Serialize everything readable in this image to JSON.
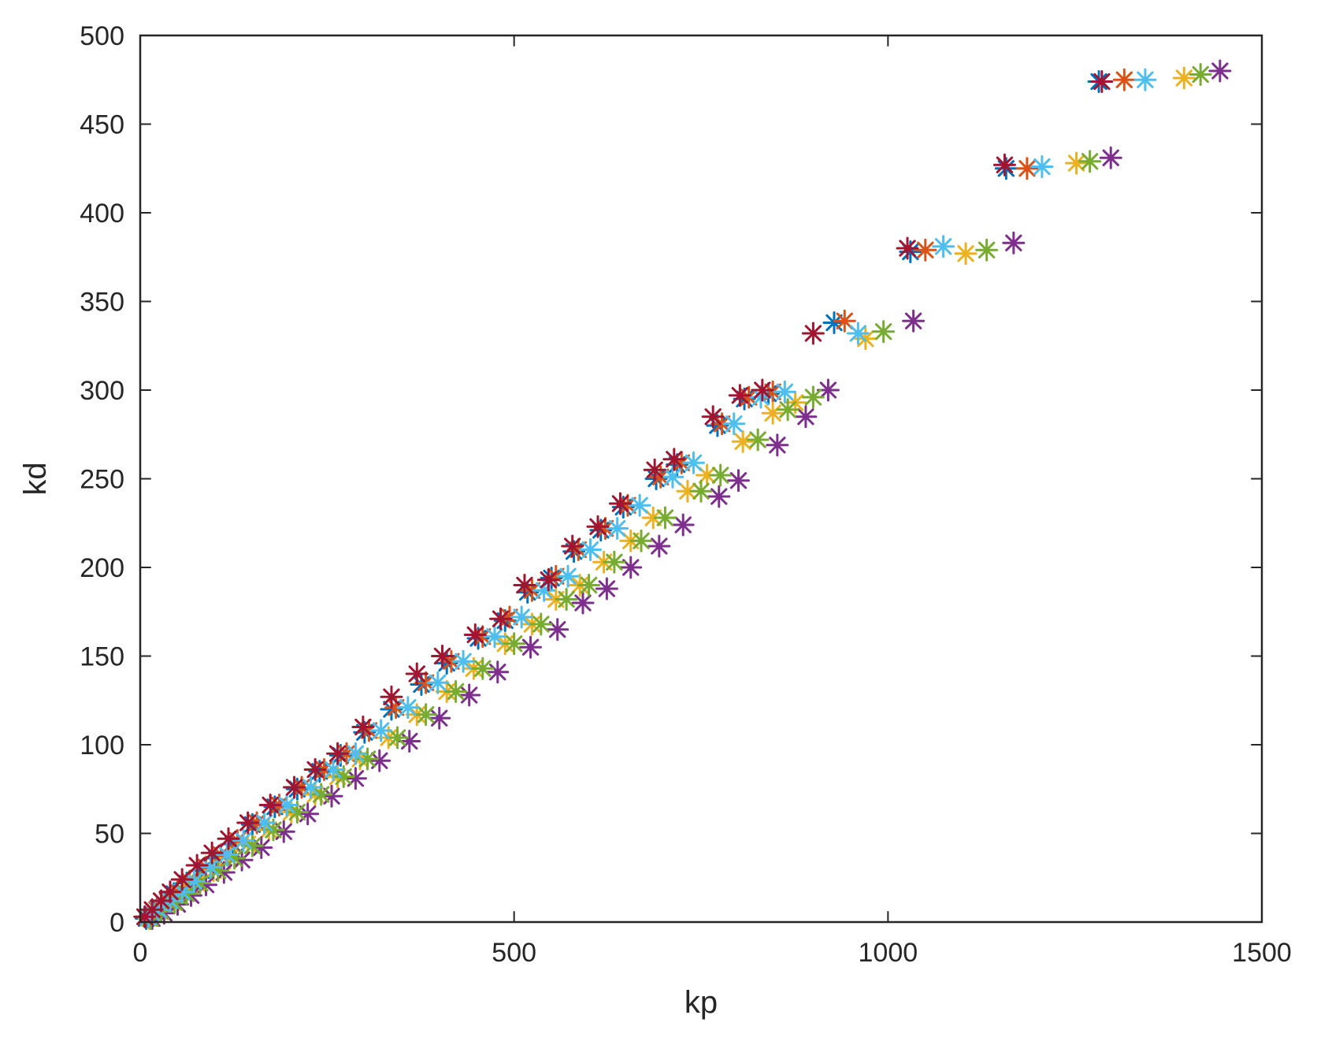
{
  "chart_data": {
    "type": "scatter",
    "title": "",
    "xlabel": "kp",
    "ylabel": "kd",
    "xlim": [
      0,
      1500
    ],
    "ylim": [
      0,
      500
    ],
    "xticks": [
      "0",
      "500",
      "1000",
      "1500"
    ],
    "yticks": [
      "0",
      "50",
      "100",
      "150",
      "200",
      "250",
      "300",
      "350",
      "400",
      "450",
      "500"
    ],
    "grid": false,
    "legend": "none",
    "marker": "*",
    "colors": [
      "#0072BD",
      "#D95319",
      "#EDB120",
      "#7E2F8E",
      "#77AC30",
      "#4DBEEE",
      "#A2142F"
    ],
    "series": [
      {
        "color": "#0072BD",
        "points": [
          [
            8,
            2
          ],
          [
            18,
            6
          ],
          [
            32,
            10
          ],
          [
            45,
            16
          ],
          [
            62,
            22
          ],
          [
            82,
            29
          ],
          [
            102,
            36
          ],
          [
            124,
            44
          ],
          [
            150,
            55
          ],
          [
            180,
            65
          ],
          [
            210,
            75
          ],
          [
            240,
            85
          ],
          [
            268,
            94
          ],
          [
            300,
            107
          ],
          [
            336,
            120
          ],
          [
            376,
            134
          ],
          [
            410,
            146
          ],
          [
            452,
            160
          ],
          [
            488,
            170
          ],
          [
            518,
            186
          ],
          [
            550,
            194
          ],
          [
            580,
            209
          ],
          [
            616,
            221
          ],
          [
            646,
            234
          ],
          [
            690,
            250
          ],
          [
            718,
            258
          ],
          [
            772,
            280
          ],
          [
            808,
            295
          ],
          [
            840,
            298
          ],
          [
            928,
            338
          ],
          [
            1030,
            378
          ],
          [
            1158,
            425
          ],
          [
            1282,
            474
          ]
        ]
      },
      {
        "color": "#D95319",
        "points": [
          [
            10,
            3
          ],
          [
            22,
            7
          ],
          [
            36,
            12
          ],
          [
            50,
            17
          ],
          [
            66,
            23
          ],
          [
            88,
            31
          ],
          [
            108,
            38
          ],
          [
            130,
            46
          ],
          [
            156,
            56
          ],
          [
            186,
            66
          ],
          [
            216,
            76
          ],
          [
            246,
            86
          ],
          [
            276,
            95
          ],
          [
            306,
            108
          ],
          [
            342,
            121
          ],
          [
            382,
            135
          ],
          [
            416,
            147
          ],
          [
            458,
            161
          ],
          [
            494,
            172
          ],
          [
            524,
            187
          ],
          [
            556,
            195
          ],
          [
            586,
            210
          ],
          [
            622,
            222
          ],
          [
            652,
            235
          ],
          [
            696,
            251
          ],
          [
            724,
            259
          ],
          [
            778,
            281
          ],
          [
            814,
            296
          ],
          [
            846,
            299
          ],
          [
            942,
            339
          ],
          [
            1050,
            379
          ],
          [
            1186,
            425
          ],
          [
            1316,
            475
          ]
        ]
      },
      {
        "color": "#EDB120",
        "points": [
          [
            12,
            2
          ],
          [
            26,
            6
          ],
          [
            42,
            11
          ],
          [
            58,
            16
          ],
          [
            76,
            22
          ],
          [
            98,
            29
          ],
          [
            120,
            36
          ],
          [
            144,
            44
          ],
          [
            172,
            52
          ],
          [
            202,
            62
          ],
          [
            234,
            72
          ],
          [
            264,
            82
          ],
          [
            294,
            92
          ],
          [
            332,
            104
          ],
          [
            370,
            117
          ],
          [
            410,
            130
          ],
          [
            446,
            143
          ],
          [
            488,
            157
          ],
          [
            524,
            168
          ],
          [
            556,
            182
          ],
          [
            588,
            190
          ],
          [
            620,
            203
          ],
          [
            656,
            215
          ],
          [
            686,
            228
          ],
          [
            732,
            243
          ],
          [
            758,
            252
          ],
          [
            806,
            271
          ],
          [
            846,
            287
          ],
          [
            876,
            293
          ],
          [
            970,
            329
          ],
          [
            1104,
            377
          ],
          [
            1252,
            428
          ],
          [
            1396,
            476
          ]
        ]
      },
      {
        "color": "#7E2F8E",
        "points": [
          [
            16,
            2
          ],
          [
            32,
            5
          ],
          [
            50,
            10
          ],
          [
            68,
            15
          ],
          [
            88,
            21
          ],
          [
            112,
            28
          ],
          [
            136,
            35
          ],
          [
            162,
            42
          ],
          [
            192,
            51
          ],
          [
            224,
            61
          ],
          [
            256,
            71
          ],
          [
            288,
            81
          ],
          [
            320,
            91
          ],
          [
            360,
            102
          ],
          [
            400,
            115
          ],
          [
            440,
            128
          ],
          [
            478,
            141
          ],
          [
            522,
            155
          ],
          [
            558,
            165
          ],
          [
            592,
            180
          ],
          [
            624,
            188
          ],
          [
            656,
            200
          ],
          [
            694,
            212
          ],
          [
            726,
            224
          ],
          [
            774,
            240
          ],
          [
            800,
            249
          ],
          [
            852,
            269
          ],
          [
            890,
            285
          ],
          [
            920,
            300
          ],
          [
            1034,
            339
          ],
          [
            1168,
            383
          ],
          [
            1298,
            431
          ],
          [
            1444,
            480
          ]
        ]
      },
      {
        "color": "#77AC30",
        "points": [
          [
            14,
            2
          ],
          [
            28,
            6
          ],
          [
            46,
            11
          ],
          [
            62,
            16
          ],
          [
            80,
            22
          ],
          [
            104,
            29
          ],
          [
            126,
            36
          ],
          [
            150,
            43
          ],
          [
            178,
            52
          ],
          [
            210,
            62
          ],
          [
            242,
            72
          ],
          [
            272,
            82
          ],
          [
            304,
            92
          ],
          [
            344,
            104
          ],
          [
            382,
            117
          ],
          [
            422,
            130
          ],
          [
            458,
            143
          ],
          [
            500,
            157
          ],
          [
            536,
            168
          ],
          [
            570,
            182
          ],
          [
            600,
            190
          ],
          [
            634,
            203
          ],
          [
            670,
            215
          ],
          [
            702,
            228
          ],
          [
            750,
            243
          ],
          [
            776,
            252
          ],
          [
            826,
            272
          ],
          [
            866,
            289
          ],
          [
            900,
            296
          ],
          [
            994,
            333
          ],
          [
            1132,
            379
          ],
          [
            1270,
            429
          ],
          [
            1418,
            478
          ]
        ]
      },
      {
        "color": "#4DBEEE",
        "points": [
          [
            11,
            3
          ],
          [
            24,
            7
          ],
          [
            40,
            12
          ],
          [
            56,
            17
          ],
          [
            72,
            23
          ],
          [
            94,
            31
          ],
          [
            116,
            38
          ],
          [
            138,
            46
          ],
          [
            166,
            56
          ],
          [
            196,
            66
          ],
          [
            228,
            76
          ],
          [
            258,
            86
          ],
          [
            288,
            95
          ],
          [
            322,
            108
          ],
          [
            358,
            121
          ],
          [
            398,
            135
          ],
          [
            432,
            147
          ],
          [
            474,
            161
          ],
          [
            510,
            172
          ],
          [
            540,
            187
          ],
          [
            572,
            195
          ],
          [
            602,
            210
          ],
          [
            638,
            222
          ],
          [
            668,
            235
          ],
          [
            712,
            251
          ],
          [
            740,
            259
          ],
          [
            794,
            281
          ],
          [
            830,
            296
          ],
          [
            862,
            299
          ],
          [
            960,
            332
          ],
          [
            1074,
            381
          ],
          [
            1206,
            426
          ],
          [
            1344,
            475
          ]
        ]
      },
      {
        "color": "#A2142F",
        "points": [
          [
            6,
            3
          ],
          [
            16,
            7
          ],
          [
            28,
            12
          ],
          [
            40,
            17
          ],
          [
            56,
            24
          ],
          [
            76,
            32
          ],
          [
            96,
            39
          ],
          [
            118,
            47
          ],
          [
            144,
            56
          ],
          [
            174,
            66
          ],
          [
            206,
            76
          ],
          [
            234,
            86
          ],
          [
            264,
            95
          ],
          [
            298,
            110
          ],
          [
            336,
            127
          ],
          [
            370,
            140
          ],
          [
            404,
            150
          ],
          [
            448,
            162
          ],
          [
            482,
            171
          ],
          [
            514,
            190
          ],
          [
            546,
            193
          ],
          [
            578,
            212
          ],
          [
            612,
            223
          ],
          [
            642,
            236
          ],
          [
            688,
            255
          ],
          [
            714,
            261
          ],
          [
            766,
            285
          ],
          [
            802,
            297
          ],
          [
            832,
            300
          ],
          [
            900,
            332
          ],
          [
            1026,
            380
          ],
          [
            1156,
            427
          ],
          [
            1286,
            474
          ]
        ]
      }
    ]
  }
}
